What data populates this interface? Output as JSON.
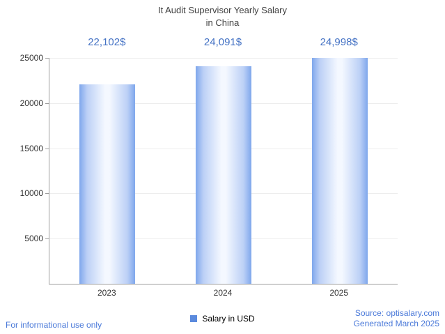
{
  "chart_data": {
    "type": "bar",
    "title": "It Audit Supervisor Yearly Salary\nin China",
    "categories": [
      "2023",
      "2024",
      "2025"
    ],
    "values": [
      22102,
      24091,
      24998
    ],
    "value_labels": [
      "22,102$",
      "24,091$",
      "24,998$"
    ],
    "series": [
      {
        "name": "Salary in USD",
        "values": [
          22102,
          24091,
          24998
        ]
      }
    ],
    "xlabel": "",
    "ylabel": "",
    "ylim": [
      0,
      25000
    ],
    "yticks": [
      5000,
      10000,
      15000,
      20000,
      25000
    ],
    "grid": true,
    "legend_position": "bottom",
    "colors": {
      "bar_edge": "#7fa7ec",
      "bar_mid": "#bcd0f6",
      "bar_center": "#f4f8ff",
      "value_label": "#4472c4",
      "axis": "#9e9e9e",
      "grid": "#ededed"
    }
  },
  "legend": {
    "label": "Salary in USD",
    "swatch_color": "#5b8add"
  },
  "footer": {
    "left": "For informational use only",
    "source": "Source: optisalary.com",
    "generated": "Generated March 2025"
  }
}
